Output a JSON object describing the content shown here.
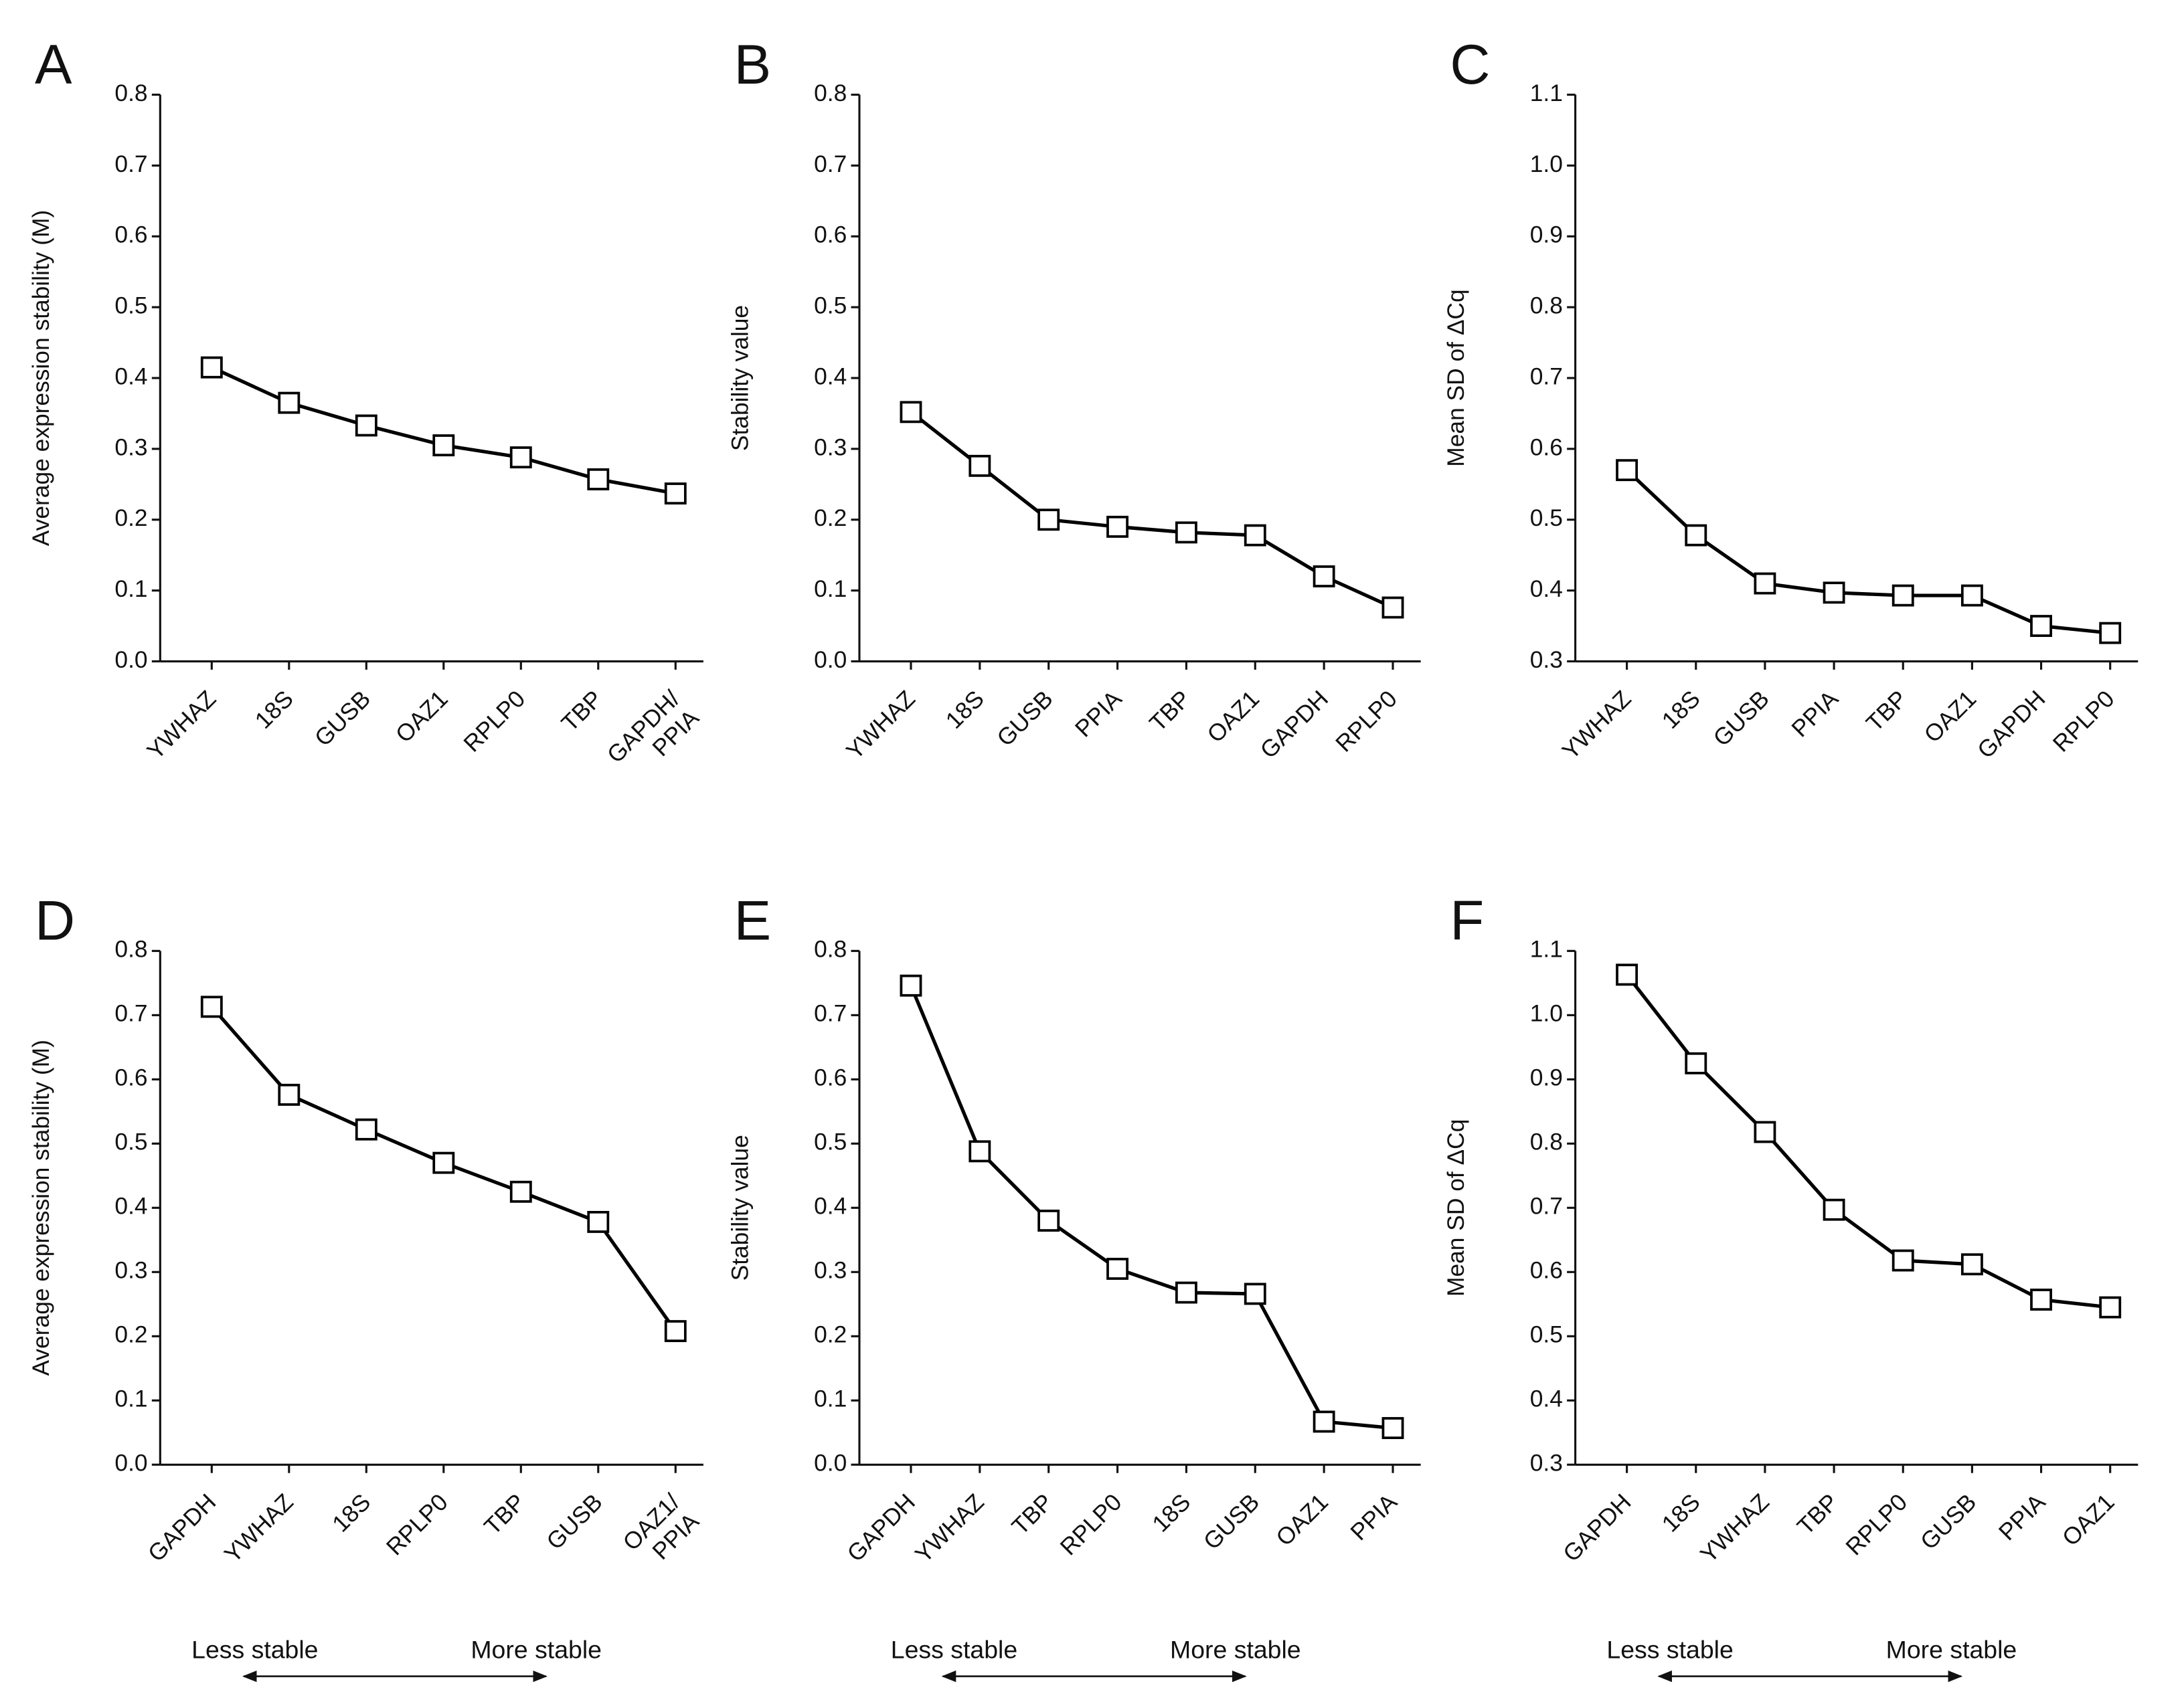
{
  "chart_data": [
    {
      "type": "line",
      "label": "A",
      "ylabel": "Average expression stability (M)",
      "categories": [
        "YWHAZ",
        "18S",
        "GUSB",
        "OAZ1",
        "RPLP0",
        "TBP",
        "GAPDH/\nPPIA"
      ],
      "values": [
        0.415,
        0.365,
        0.333,
        0.305,
        0.288,
        0.257,
        0.237
      ],
      "color": "#000000",
      "ylim": [
        0,
        0.8
      ],
      "yticks": [
        {
          "value": 0,
          "label": "0.0"
        },
        0.1,
        0.2,
        0.3,
        0.4,
        0.5,
        0.6,
        0.7,
        0.8
      ]
    },
    {
      "type": "line",
      "label": "B",
      "ylabel": "Stability value",
      "categories": [
        "YWHAZ",
        "18S",
        "GUSB",
        "PPIA",
        "TBP",
        "OAZ1",
        "GAPDH",
        "RPLP0"
      ],
      "values": [
        0.352,
        0.276,
        0.2,
        0.19,
        0.182,
        0.178,
        0.12,
        0.076
      ],
      "color": "#000000",
      "ylim": [
        0,
        0.8
      ],
      "yticks": [
        {
          "value": 0,
          "label": "0.0"
        },
        0.1,
        0.2,
        0.3,
        0.4,
        0.5,
        0.6,
        0.7,
        0.8
      ]
    },
    {
      "type": "line",
      "label": "C",
      "ylabel": "Mean SD of ΔCq",
      "categories": [
        "YWHAZ",
        "18S",
        "GUSB",
        "PPIA",
        "TBP",
        "OAZ1",
        "GAPDH",
        "RPLP0"
      ],
      "values": [
        0.57,
        0.478,
        0.41,
        0.397,
        0.393,
        0.393,
        0.35,
        0.34
      ],
      "color": "#000000",
      "ylim": [
        0.3,
        1.1
      ],
      "yticks": [
        0.3,
        0.4,
        0.5,
        0.6,
        0.7,
        0.8,
        0.9,
        {
          "value": 1,
          "label": "1.0"
        },
        1.1
      ]
    },
    {
      "type": "line",
      "label": "D",
      "ylabel": "Average expression stability (M)",
      "categories": [
        "GAPDH",
        "YWHAZ",
        "18S",
        "RPLP0",
        "TBP",
        "GUSB",
        "OAZ1/\nPPIA"
      ],
      "values": [
        0.713,
        0.576,
        0.522,
        0.47,
        0.425,
        0.378,
        0.208
      ],
      "color": "#000000",
      "ylim": [
        0,
        0.8
      ],
      "yticks": [
        {
          "value": 0,
          "label": "0.0"
        },
        0.1,
        0.2,
        0.3,
        0.4,
        0.5,
        0.6,
        0.7,
        0.8
      ],
      "annotations": [
        "Less stable",
        "More stable"
      ]
    },
    {
      "type": "line",
      "label": "E",
      "ylabel": "Stability value",
      "categories": [
        "GAPDH",
        "YWHAZ",
        "TBP",
        "RPLP0",
        "18S",
        "GUSB",
        "OAZ1",
        "PPIA"
      ],
      "values": [
        0.746,
        0.488,
        0.38,
        0.305,
        0.268,
        0.266,
        0.067,
        0.057
      ],
      "color": "#000000",
      "ylim": [
        0,
        0.8
      ],
      "yticks": [
        {
          "value": 0,
          "label": "0.0"
        },
        0.1,
        0.2,
        0.3,
        0.4,
        0.5,
        0.6,
        0.7,
        0.8
      ],
      "annotations": [
        "Less stable",
        "More stable"
      ]
    },
    {
      "type": "line",
      "label": "F",
      "ylabel": "Mean SD of ΔCq",
      "categories": [
        "GAPDH",
        "18S",
        "YWHAZ",
        "TBP",
        "RPLP0",
        "GUSB",
        "PPIA",
        "OAZ1"
      ],
      "values": [
        1.063,
        0.925,
        0.818,
        0.697,
        0.618,
        0.612,
        0.557,
        0.545
      ],
      "color": "#000000",
      "ylim": [
        0.3,
        1.1
      ],
      "yticks": [
        0.3,
        0.4,
        0.5,
        0.6,
        0.7,
        0.8,
        0.9,
        {
          "value": 1,
          "label": "1.0"
        },
        1.1
      ],
      "annotations": [
        "Less stable",
        "More stable"
      ]
    }
  ]
}
